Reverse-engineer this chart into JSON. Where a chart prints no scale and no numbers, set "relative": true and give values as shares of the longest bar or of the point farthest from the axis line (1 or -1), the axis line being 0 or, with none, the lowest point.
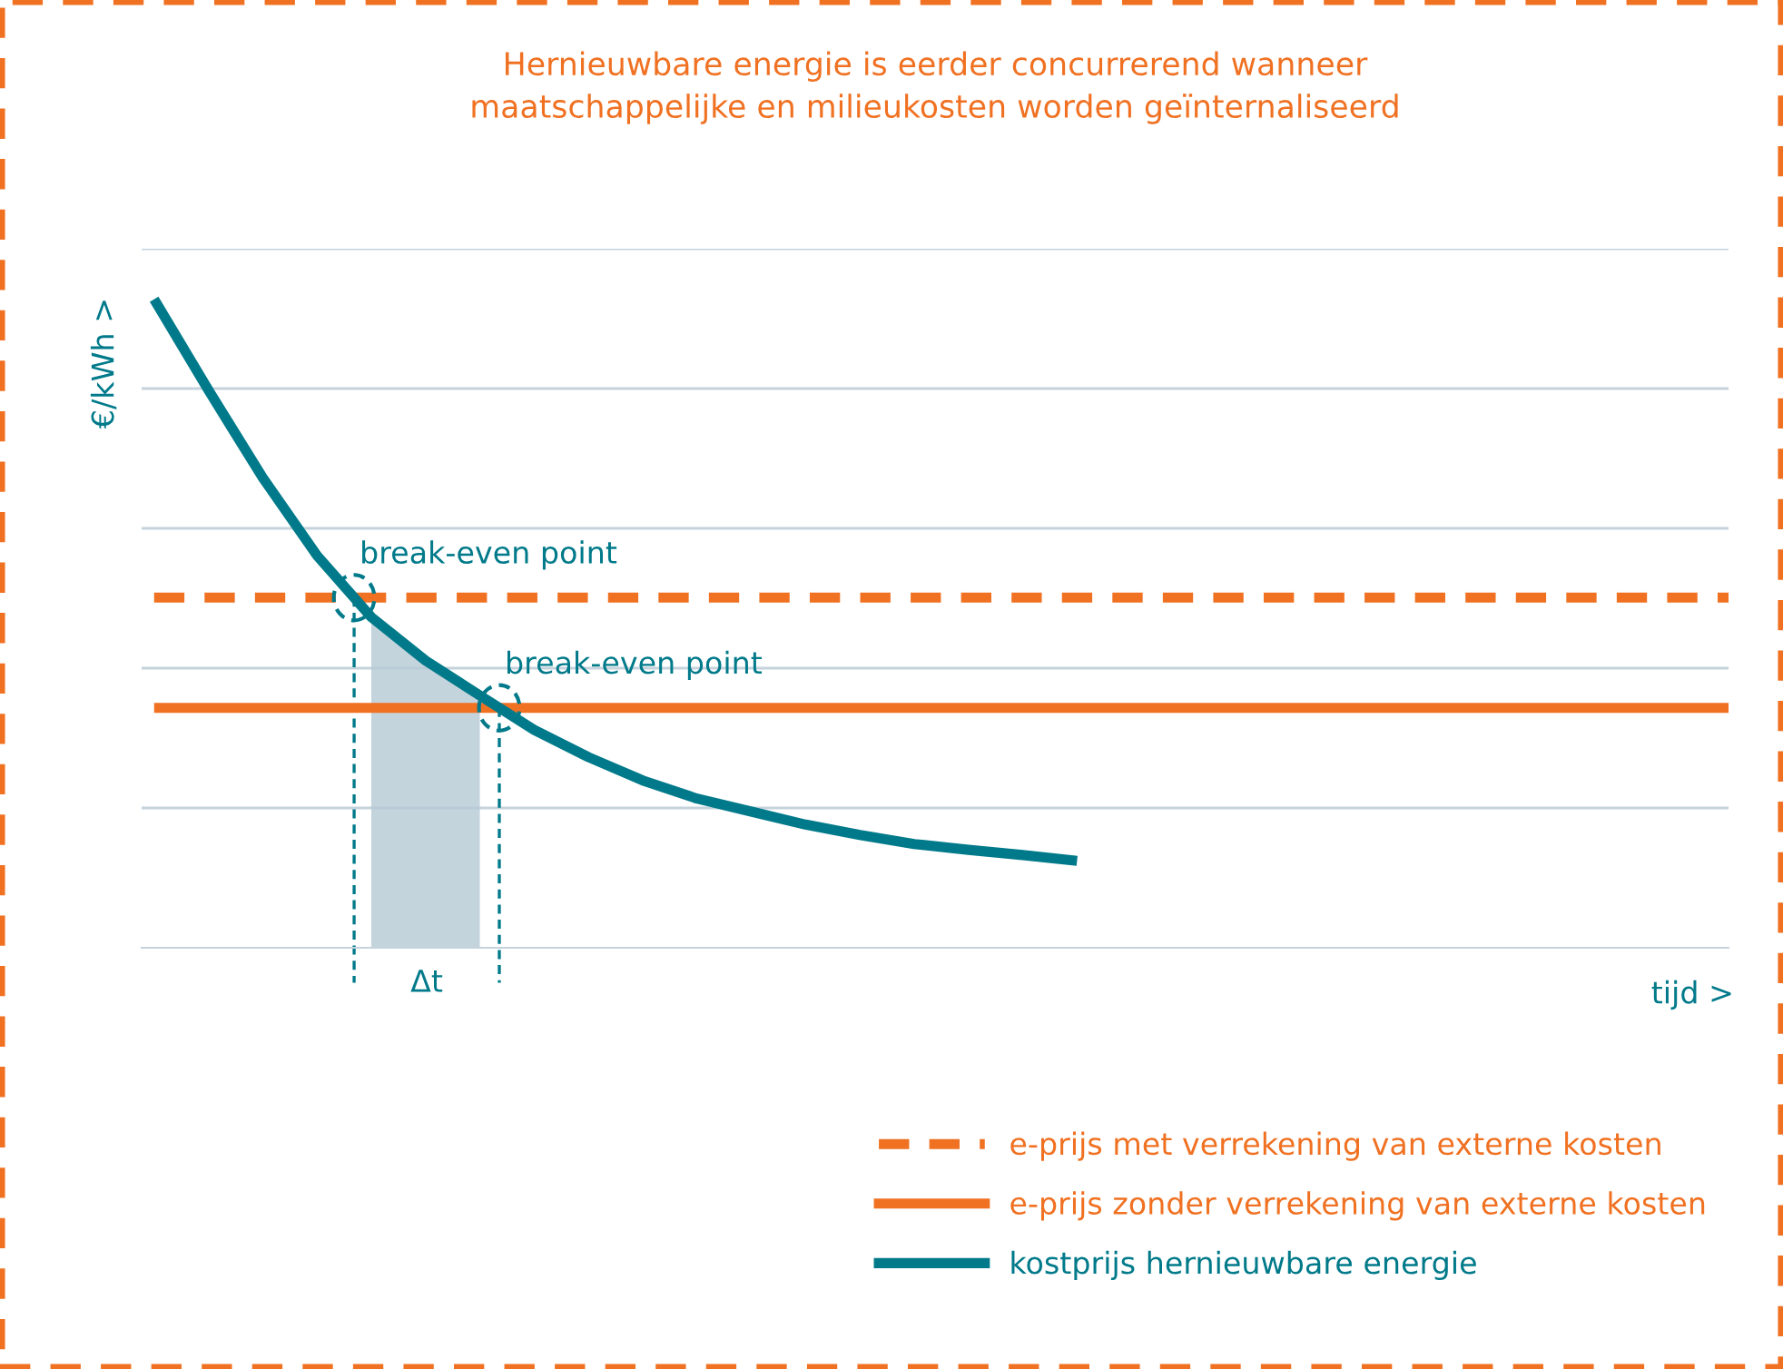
{
  "chart_data": {
    "type": "line",
    "relative": true,
    "title": "Hernieuwbare energie is eerder concurrerend wanneer\nmaatschappelijke en milieukosten worden geïnternaliseerd",
    "xlabel": "tijd >",
    "ylabel": "€/kWh >",
    "categories": [
      null,
      null,
      null,
      null,
      null,
      null,
      null,
      null,
      null,
      null,
      null,
      null,
      null,
      null,
      null,
      null,
      null,
      null,
      null,
      null,
      null,
      null,
      null,
      null,
      null,
      null,
      null,
      null,
      null,
      null
    ],
    "series": [
      {
        "type": "area",
        "color": "#b5c9d4",
        "values": [
          null,
          null,
          null,
          null,
          0.51,
          0.443,
          0.389,
          null,
          null,
          null,
          null,
          null,
          null,
          null,
          null,
          null,
          null,
          null,
          null,
          null,
          null,
          null,
          null,
          null,
          null,
          null,
          null,
          null,
          null,
          null
        ]
      },
      {
        "name": "e-prijs met verrekening van externe kosten",
        "color": "#f07122",
        "line_style": "dashed",
        "values": [
          0.54,
          0.54,
          0.54,
          0.54,
          0.54,
          0.54,
          0.54,
          0.54,
          0.54,
          0.54,
          0.54,
          0.54,
          0.54,
          0.54,
          0.54,
          0.54,
          0.54,
          0.54,
          0.54,
          0.54,
          0.54,
          0.54,
          0.54,
          0.54,
          0.54,
          0.54,
          0.54,
          0.54,
          0.54,
          0.54
        ]
      },
      {
        "name": "e-prijs zonder verrekening van externe kosten",
        "color": "#f07122",
        "line_style": "solid",
        "values": [
          0.37,
          0.37,
          0.37,
          0.37,
          0.37,
          0.37,
          0.37,
          0.37,
          0.37,
          0.37,
          0.37,
          0.37,
          0.37,
          0.37,
          0.37,
          0.37,
          0.37,
          0.37,
          0.37,
          0.37,
          0.37,
          0.37,
          0.37,
          0.37,
          0.37,
          0.37,
          0.37,
          0.37,
          0.37,
          0.37
        ]
      },
      {
        "name": "kostprijs hernieuwbare energie",
        "color": "#007a8a",
        "line_style": "solid",
        "values": [
          1.0,
          0.86,
          0.725,
          0.605,
          0.51,
          0.443,
          0.389,
          0.336,
          0.294,
          0.258,
          0.23,
          0.21,
          0.19,
          0.174,
          0.16,
          0.151,
          0.143,
          0.134,
          null,
          null,
          null,
          null,
          null,
          null,
          null,
          null,
          null,
          null,
          null,
          null
        ]
      }
    ],
    "annotations": [
      "break-even point",
      "break-even point",
      "Δt"
    ],
    "grid": "y",
    "legend": "bottom right",
    "marker": "none"
  }
}
